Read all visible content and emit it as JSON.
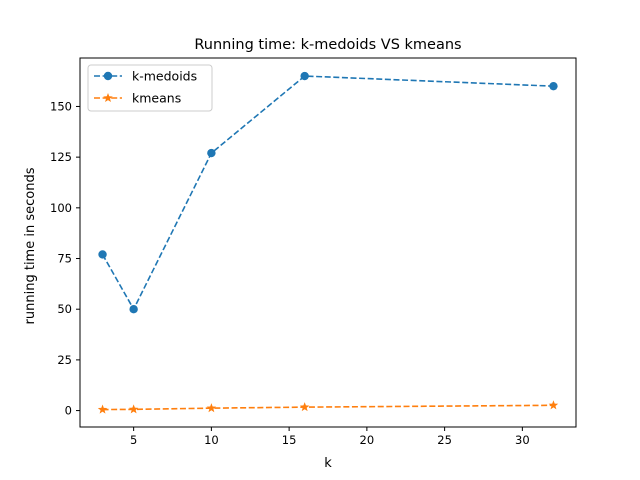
{
  "chart_data": {
    "type": "line",
    "title": "Running time: k-medoids VS kmeans",
    "xlabel": "k",
    "ylabel": "running time in seconds",
    "xlim": [
      1.55,
      33.45
    ],
    "ylim": [
      -8.1,
      173.9
    ],
    "xticks": [
      5,
      10,
      15,
      20,
      25,
      30
    ],
    "yticks": [
      0,
      25,
      50,
      75,
      100,
      125,
      150
    ],
    "grid": false,
    "legend_position": "upper-left",
    "series": [
      {
        "name": "k-medoids",
        "color": "#1f77b4",
        "marker": "circle",
        "linestyle": "dashed",
        "x": [
          3,
          5,
          10,
          16,
          32
        ],
        "y": [
          77,
          50,
          127,
          165,
          160
        ]
      },
      {
        "name": "kmeans",
        "color": "#ff7f0e",
        "marker": "star",
        "linestyle": "dashed",
        "x": [
          3,
          5,
          10,
          16,
          32
        ],
        "y": [
          0.5,
          0.6,
          1.2,
          1.7,
          2.6
        ]
      }
    ]
  }
}
